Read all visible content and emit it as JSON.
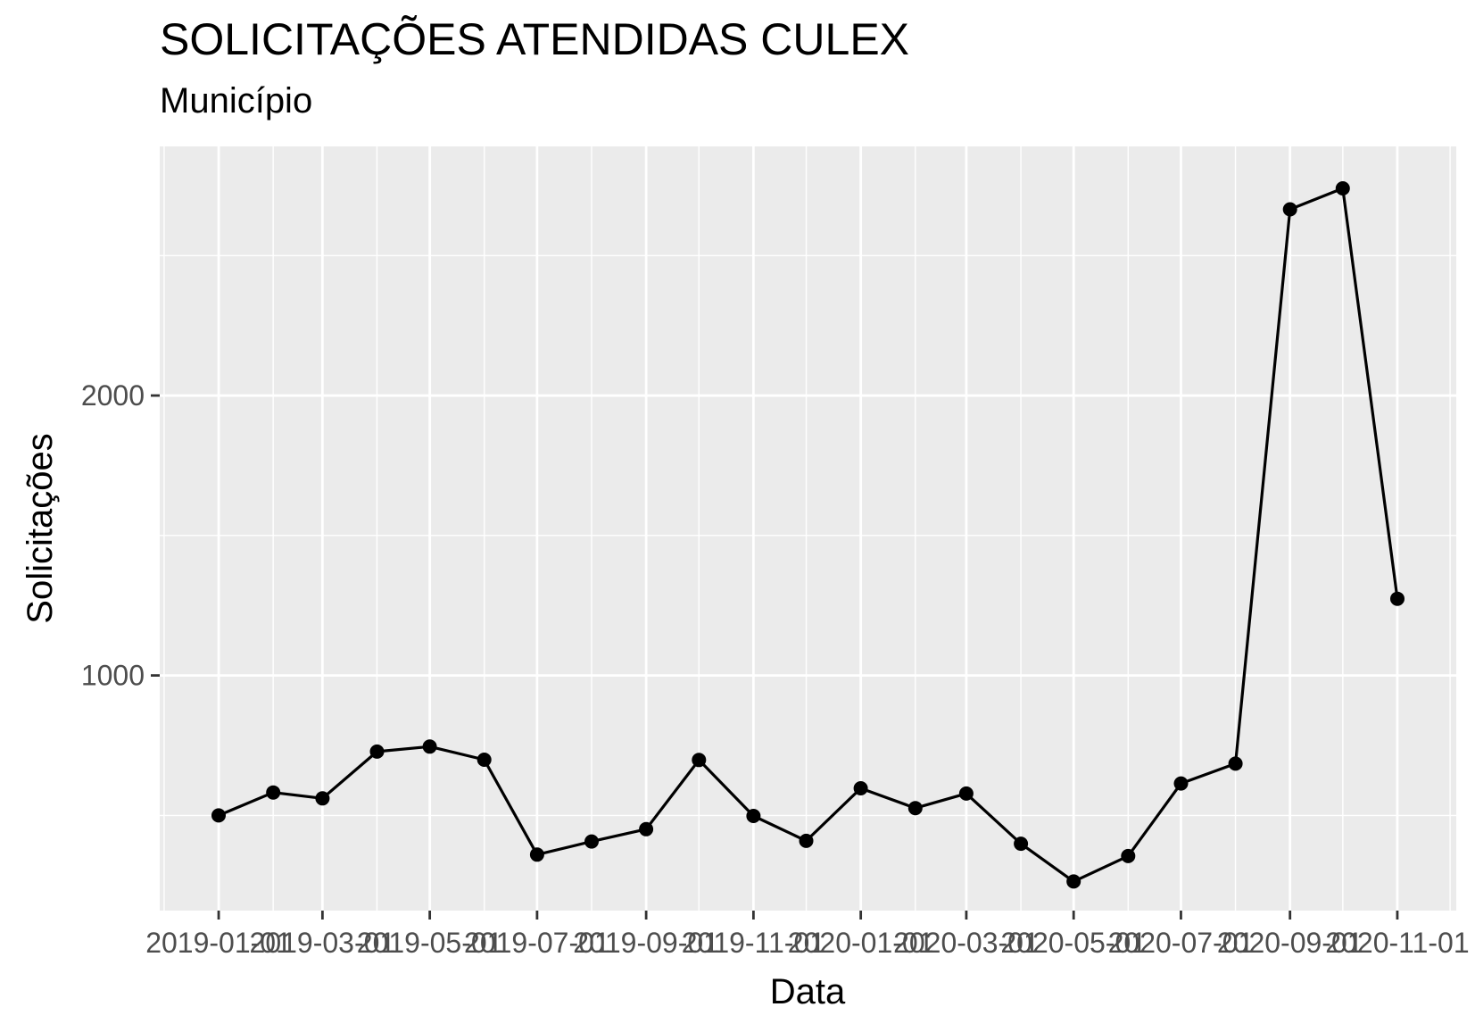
{
  "chart_data": {
    "type": "line",
    "title": "SOLICITAÇÕES ATENDIDAS CULEX",
    "subtitle": "Município",
    "xlabel": "Data",
    "ylabel": "Solicitações",
    "x_ticks": [
      "2019-01-01",
      "2019-03-01",
      "2019-05-01",
      "2019-07-01",
      "2019-09-01",
      "2019-11-01",
      "2020-01-01",
      "2020-03-01",
      "2020-05-01",
      "2020-07-01",
      "2020-09-01",
      "2020-11-01"
    ],
    "y_ticks": [
      1000,
      2000
    ],
    "ylim": [
      160,
      2890
    ],
    "grid": true,
    "series": [
      {
        "x": [
          "2019-01",
          "2019-02",
          "2019-03",
          "2019-04",
          "2019-05",
          "2019-06",
          "2019-07",
          "2019-08",
          "2019-09",
          "2019-10",
          "2019-11",
          "2019-12",
          "2020-01",
          "2020-02",
          "2020-03",
          "2020-04",
          "2020-05",
          "2020-06",
          "2020-07",
          "2020-08",
          "2020-09",
          "2020-10",
          "2020-11"
        ],
        "values": [
          500,
          582,
          561,
          728,
          746,
          699,
          360,
          407,
          451,
          698,
          498,
          409,
          597,
          526,
          578,
          399,
          264,
          355,
          614,
          685,
          2665,
          2740,
          1274
        ]
      }
    ],
    "colors": {
      "line": "#000000",
      "panel": "#ebebeb",
      "grid": "#ffffff"
    }
  }
}
